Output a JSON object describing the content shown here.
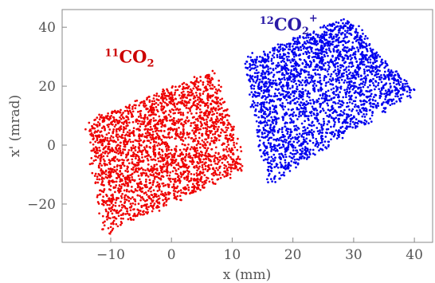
{
  "chart_data": {
    "type": "scatter",
    "title": "",
    "xlabel": "x (mm)",
    "ylabel": "x' (mrad)",
    "xlim": [
      -18,
      43
    ],
    "ylim": [
      -33,
      46
    ],
    "xticks": [
      -10,
      0,
      10,
      20,
      30,
      40
    ],
    "yticks": [
      -20,
      0,
      20,
      40
    ],
    "xtick_labels": [
      "−10",
      "0",
      "10",
      "20",
      "30",
      "40"
    ],
    "ytick_labels": [
      "−20",
      "0",
      "20",
      "40"
    ],
    "grid": false,
    "legend": "none",
    "series": [
      {
        "color": "#ee0000",
        "point_count": 2500,
        "cluster": {
          "corners": [
            [
              -14,
              8
            ],
            [
              7,
              25
            ],
            [
              12,
              -8
            ],
            [
              -11,
              -30
            ]
          ],
          "center": [
            0,
            0
          ]
        }
      },
      {
        "color": "#0000ee",
        "point_count": 2500,
        "cluster": {
          "corners": [
            [
              12,
              29
            ],
            [
              29,
              43
            ],
            [
              40,
              18
            ],
            [
              16,
              -13
            ]
          ],
          "center": [
            25,
            15
          ]
        }
      }
    ],
    "annotations": [
      {
        "color": "#cc0000",
        "pre_sup": "11",
        "main": "CO",
        "sub": "2",
        "post_sup": "",
        "at": [
          -11,
          28
        ]
      },
      {
        "color": "#2a1aa6",
        "pre_sup": "12",
        "main": "CO",
        "sub": "2",
        "post_sup": "+",
        "at": [
          14.5,
          39
        ]
      }
    ]
  }
}
